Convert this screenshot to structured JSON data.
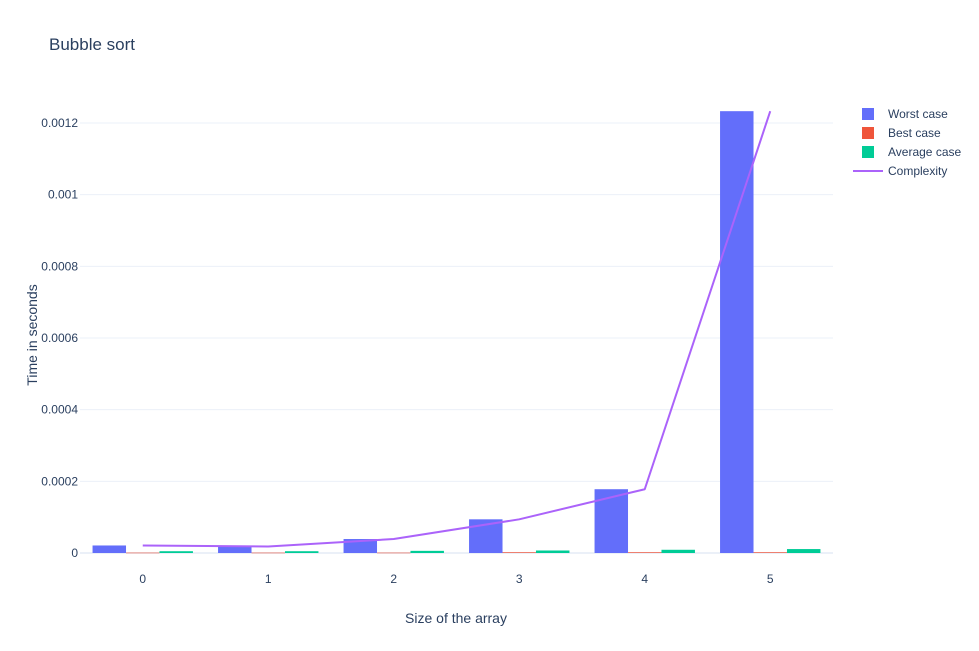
{
  "chart_data": {
    "type": "bar",
    "title": "Bubble sort",
    "xlabel": "Size of the array",
    "ylabel": "Time in seconds",
    "categories": [
      "0",
      "1",
      "2",
      "3",
      "4",
      "5"
    ],
    "yticks": [
      "0",
      "0.0002",
      "0.0004",
      "0.0006",
      "0.0008",
      "0.001",
      "0.0012"
    ],
    "ylim": [
      0,
      0.00132
    ],
    "grid": true,
    "legend_position": "top-right",
    "series": [
      {
        "name": "Worst case",
        "type": "bar",
        "color": "#636efa",
        "values": [
          2.1e-05,
          1.8e-05,
          3.9e-05,
          9.4e-05,
          0.000178,
          0.001233
        ]
      },
      {
        "name": "Best case",
        "type": "bar",
        "color": "#ef553b",
        "values": [
          1e-06,
          1e-06,
          1e-06,
          2e-06,
          2e-06,
          2e-06
        ]
      },
      {
        "name": "Average case",
        "type": "bar",
        "color": "#00cc96",
        "values": [
          5e-06,
          5e-06,
          6e-06,
          7e-06,
          9e-06,
          1.1e-05
        ]
      },
      {
        "name": "Complexity",
        "type": "line",
        "color": "#ab63fa",
        "values": [
          2.1e-05,
          1.8e-05,
          3.9e-05,
          9.4e-05,
          0.000178,
          0.001233
        ]
      }
    ]
  }
}
